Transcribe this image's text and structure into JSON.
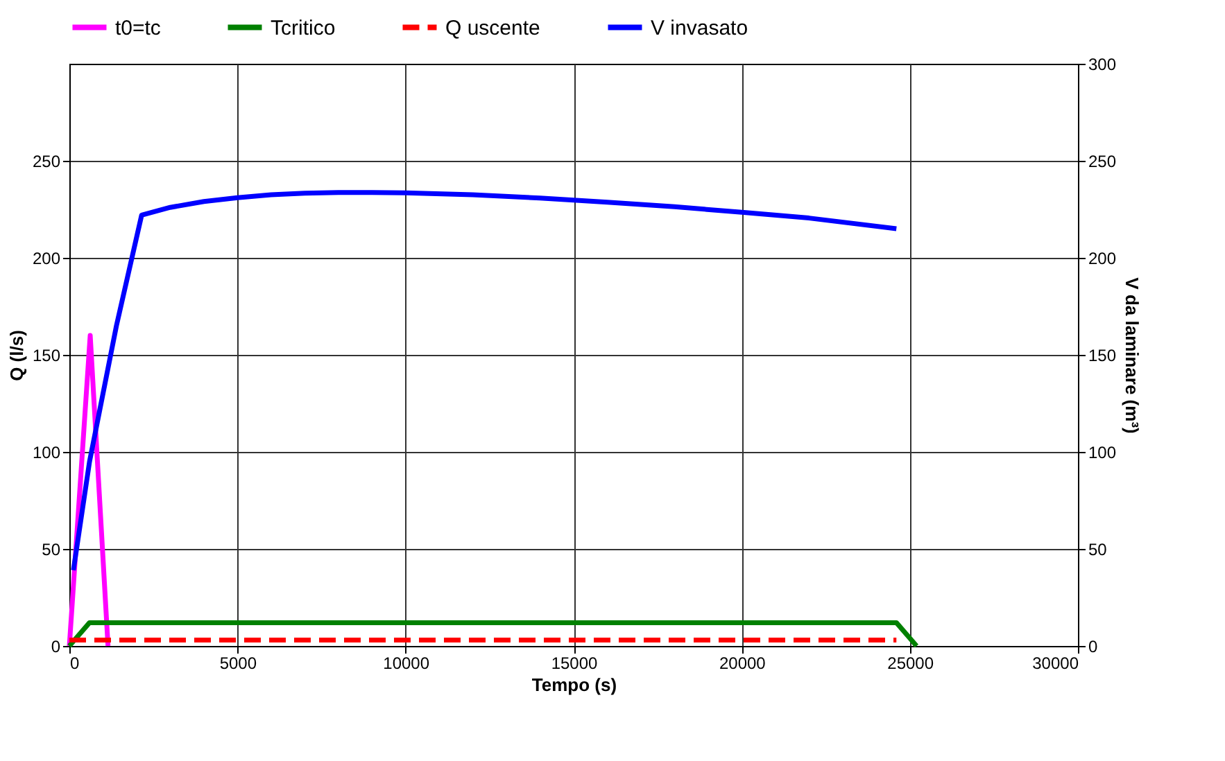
{
  "chart_data": {
    "type": "line",
    "xlabel": "Tempo (s)",
    "ylabel": "Q (l/s)",
    "y2label": "V da laminare (m³)",
    "xlim": [
      0,
      30000
    ],
    "xticks": [
      0,
      5000,
      10000,
      15000,
      20000,
      25000,
      30000
    ],
    "ylim": [
      0,
      300
    ],
    "yticks": [
      0,
      50,
      100,
      150,
      200,
      250
    ],
    "y2lim": [
      0,
      300
    ],
    "y2ticks": [
      0,
      50,
      100,
      150,
      200,
      250,
      300
    ],
    "grid": true,
    "legend": "top",
    "marker": "none",
    "line_style": "solid",
    "series": [
      {
        "name": "t0=tc",
        "color": "#ff00ff",
        "x": [
          0,
          620,
          1150
        ],
        "values": [
          0,
          160,
          0
        ]
      },
      {
        "name": "Tcritico",
        "color": "#008000",
        "x": [
          0,
          600,
          24600,
          25200
        ],
        "values": [
          0,
          12,
          12,
          0
        ]
      },
      {
        "name": "Q uscente",
        "color": "#ff0000",
        "line_style": "dashed",
        "x": [
          0,
          24600
        ],
        "values": [
          3,
          3
        ]
      },
      {
        "name": "V invasato",
        "color": "#0000ff",
        "axis": "y2",
        "x": [
          120,
          600,
          1400,
          2150,
          3000,
          4000,
          5000,
          6000,
          7000,
          8000,
          9000,
          10000,
          12000,
          14000,
          16000,
          18000,
          20000,
          22000,
          24600
        ],
        "values": [
          39,
          95,
          165,
          222,
          226,
          229,
          231,
          232.5,
          233.3,
          233.7,
          233.7,
          233.5,
          232.5,
          230.8,
          228.7,
          226.3,
          223.5,
          220.5,
          215
        ]
      }
    ]
  }
}
